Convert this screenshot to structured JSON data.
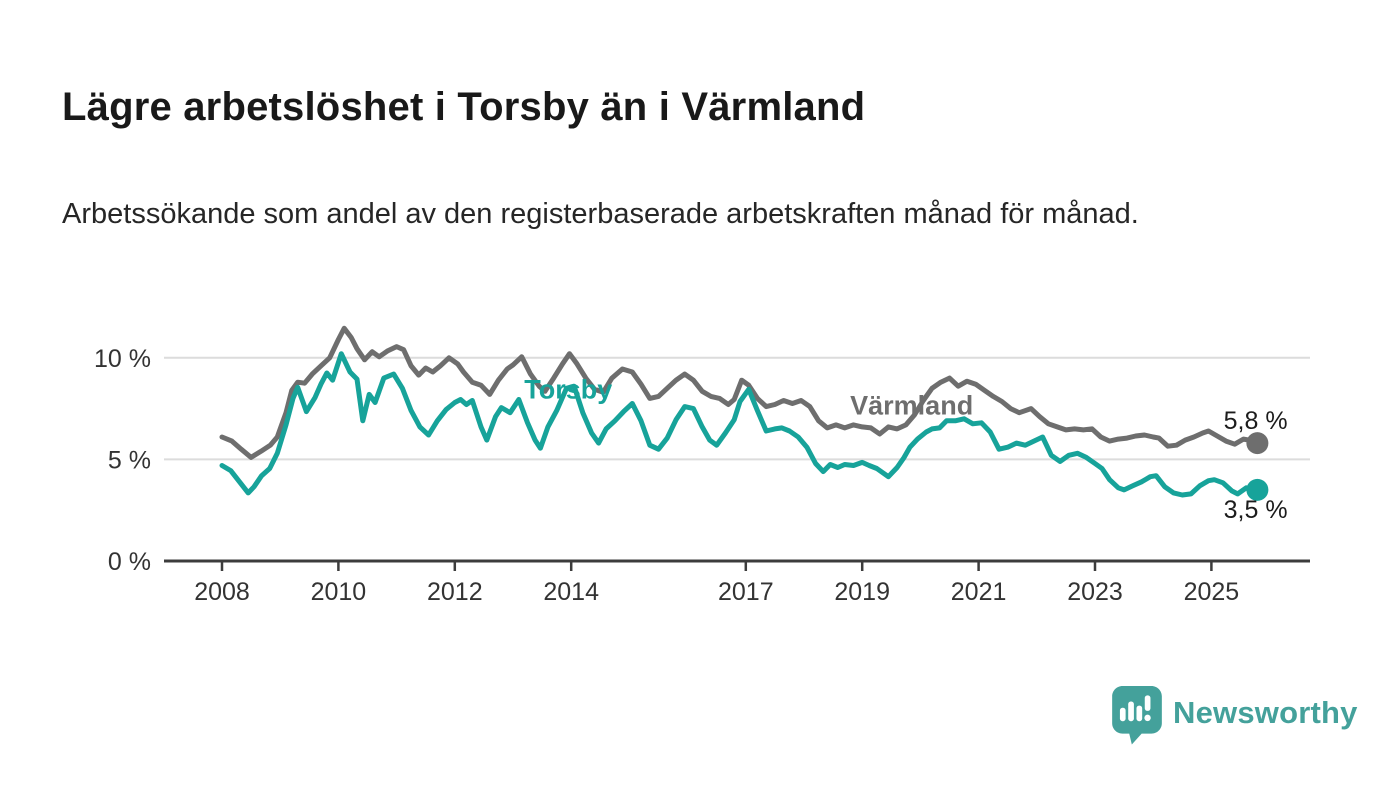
{
  "header": {
    "title": "Lägre arbetslöshet i Torsby än i Värmland",
    "subtitle": "Arbetssökande som andel av den registerbaserade arbetskraften månad för månad."
  },
  "footer": {
    "brand": "Newsworthy",
    "brand_color": "#44a19b",
    "icon": "newsworthy-speech-bubble-bar-chart-icon"
  },
  "colors": {
    "torsby_line": "#17a39a",
    "varmland_line": "#6e6e6e",
    "gridline": "#dcdcdc",
    "axis": "#3c3c3c",
    "tick_text": "#333333",
    "end_label_text": "#1c1c1c"
  },
  "chart_data": {
    "type": "line",
    "title": "Lägre arbetslöshet i Torsby än i Värmland",
    "subtitle": "Arbetssökande som andel av den registerbaserade arbetskraften månad för månad.",
    "unit": "%",
    "grid": "horizontal gridlines at 5 % and 10 %, x axis baseline at 0 %",
    "legend": "inline series labels on chart",
    "xlim_years": [
      2007.0,
      2026.7
    ],
    "ylim": [
      0,
      12.5
    ],
    "x_tick_labels": [
      "2008",
      "2010",
      "2012",
      "2014",
      "2017",
      "2019",
      "2021",
      "2023",
      "2025"
    ],
    "x_tick_years": [
      2008,
      2010,
      2012,
      2014,
      2017,
      2019,
      2021,
      2023,
      2025
    ],
    "y_ticks": [
      {
        "value": 0,
        "label": "0 %"
      },
      {
        "value": 5,
        "label": "5 %"
      },
      {
        "value": 10,
        "label": "10 %"
      }
    ],
    "series": [
      {
        "name": "Värmland",
        "color": "#6e6e6e",
        "end_label": "5,8 %",
        "end_value": 5.8,
        "label_anchor": {
          "year": 2019.85,
          "value": 7.65
        },
        "end_label_anchor": {
          "year": 2025.76,
          "value": 6.95
        },
        "points": [
          [
            2008.0,
            6.1
          ],
          [
            2008.17,
            5.9
          ],
          [
            2008.33,
            5.5
          ],
          [
            2008.5,
            5.1
          ],
          [
            2008.67,
            5.4
          ],
          [
            2008.83,
            5.7
          ],
          [
            2008.95,
            6.1
          ],
          [
            2009.1,
            7.3
          ],
          [
            2009.2,
            8.4
          ],
          [
            2009.3,
            8.8
          ],
          [
            2009.42,
            8.75
          ],
          [
            2009.55,
            9.2
          ],
          [
            2009.7,
            9.6
          ],
          [
            2009.85,
            10.0
          ],
          [
            2010.0,
            10.9
          ],
          [
            2010.1,
            11.45
          ],
          [
            2010.22,
            11.0
          ],
          [
            2010.32,
            10.45
          ],
          [
            2010.45,
            9.9
          ],
          [
            2010.58,
            10.3
          ],
          [
            2010.7,
            10.05
          ],
          [
            2010.85,
            10.35
          ],
          [
            2011.0,
            10.55
          ],
          [
            2011.12,
            10.4
          ],
          [
            2011.25,
            9.6
          ],
          [
            2011.38,
            9.15
          ],
          [
            2011.5,
            9.5
          ],
          [
            2011.62,
            9.3
          ],
          [
            2011.75,
            9.6
          ],
          [
            2011.9,
            10.0
          ],
          [
            2012.05,
            9.7
          ],
          [
            2012.15,
            9.3
          ],
          [
            2012.3,
            8.8
          ],
          [
            2012.45,
            8.65
          ],
          [
            2012.6,
            8.2
          ],
          [
            2012.75,
            8.9
          ],
          [
            2012.9,
            9.45
          ],
          [
            2013.0,
            9.65
          ],
          [
            2013.15,
            10.05
          ],
          [
            2013.3,
            9.2
          ],
          [
            2013.45,
            8.6
          ],
          [
            2013.55,
            8.35
          ],
          [
            2013.7,
            9.0
          ],
          [
            2013.85,
            9.7
          ],
          [
            2013.97,
            10.2
          ],
          [
            2014.1,
            9.7
          ],
          [
            2014.25,
            9.0
          ],
          [
            2014.4,
            8.45
          ],
          [
            2014.55,
            8.3
          ],
          [
            2014.7,
            9.0
          ],
          [
            2014.88,
            9.45
          ],
          [
            2015.05,
            9.3
          ],
          [
            2015.2,
            8.7
          ],
          [
            2015.35,
            8.0
          ],
          [
            2015.5,
            8.1
          ],
          [
            2015.65,
            8.5
          ],
          [
            2015.8,
            8.9
          ],
          [
            2015.95,
            9.2
          ],
          [
            2016.1,
            8.9
          ],
          [
            2016.25,
            8.35
          ],
          [
            2016.4,
            8.1
          ],
          [
            2016.55,
            8.0
          ],
          [
            2016.7,
            7.7
          ],
          [
            2016.8,
            7.95
          ],
          [
            2016.93,
            8.9
          ],
          [
            2017.05,
            8.65
          ],
          [
            2017.2,
            8.0
          ],
          [
            2017.35,
            7.6
          ],
          [
            2017.5,
            7.7
          ],
          [
            2017.65,
            7.9
          ],
          [
            2017.8,
            7.75
          ],
          [
            2017.95,
            7.9
          ],
          [
            2018.1,
            7.6
          ],
          [
            2018.25,
            6.9
          ],
          [
            2018.4,
            6.55
          ],
          [
            2018.55,
            6.7
          ],
          [
            2018.7,
            6.55
          ],
          [
            2018.85,
            6.7
          ],
          [
            2019.0,
            6.6
          ],
          [
            2019.15,
            6.55
          ],
          [
            2019.3,
            6.25
          ],
          [
            2019.45,
            6.6
          ],
          [
            2019.6,
            6.5
          ],
          [
            2019.75,
            6.7
          ],
          [
            2019.9,
            7.2
          ],
          [
            2020.05,
            7.9
          ],
          [
            2020.2,
            8.5
          ],
          [
            2020.35,
            8.8
          ],
          [
            2020.5,
            9.0
          ],
          [
            2020.65,
            8.6
          ],
          [
            2020.8,
            8.85
          ],
          [
            2020.95,
            8.7
          ],
          [
            2021.1,
            8.4
          ],
          [
            2021.25,
            8.1
          ],
          [
            2021.4,
            7.85
          ],
          [
            2021.55,
            7.5
          ],
          [
            2021.7,
            7.3
          ],
          [
            2021.9,
            7.5
          ],
          [
            2022.05,
            7.1
          ],
          [
            2022.2,
            6.75
          ],
          [
            2022.35,
            6.6
          ],
          [
            2022.5,
            6.45
          ],
          [
            2022.65,
            6.5
          ],
          [
            2022.8,
            6.45
          ],
          [
            2022.95,
            6.5
          ],
          [
            2023.1,
            6.1
          ],
          [
            2023.25,
            5.9
          ],
          [
            2023.4,
            6.0
          ],
          [
            2023.55,
            6.05
          ],
          [
            2023.7,
            6.15
          ],
          [
            2023.85,
            6.2
          ],
          [
            2024.0,
            6.1
          ],
          [
            2024.1,
            6.05
          ],
          [
            2024.25,
            5.65
          ],
          [
            2024.4,
            5.7
          ],
          [
            2024.55,
            5.95
          ],
          [
            2024.7,
            6.1
          ],
          [
            2024.85,
            6.3
          ],
          [
            2024.95,
            6.4
          ],
          [
            2025.1,
            6.15
          ],
          [
            2025.25,
            5.9
          ],
          [
            2025.4,
            5.75
          ],
          [
            2025.55,
            6.0
          ],
          [
            2025.65,
            5.95
          ],
          [
            2025.79,
            5.8
          ]
        ]
      },
      {
        "name": "Torsby",
        "color": "#17a39a",
        "end_label": "3,5 %",
        "end_value": 3.5,
        "label_anchor": {
          "year": 2013.95,
          "value": 8.45
        },
        "end_label_anchor": {
          "year": 2025.76,
          "value": 2.55
        },
        "points": [
          [
            2008.0,
            4.7
          ],
          [
            2008.15,
            4.45
          ],
          [
            2008.3,
            3.9
          ],
          [
            2008.45,
            3.35
          ],
          [
            2008.55,
            3.65
          ],
          [
            2008.68,
            4.2
          ],
          [
            2008.82,
            4.55
          ],
          [
            2008.95,
            5.3
          ],
          [
            2009.1,
            6.7
          ],
          [
            2009.22,
            8.0
          ],
          [
            2009.3,
            8.55
          ],
          [
            2009.45,
            7.35
          ],
          [
            2009.6,
            8.05
          ],
          [
            2009.7,
            8.7
          ],
          [
            2009.8,
            9.25
          ],
          [
            2009.9,
            8.9
          ],
          [
            2010.05,
            10.2
          ],
          [
            2010.2,
            9.3
          ],
          [
            2010.32,
            8.95
          ],
          [
            2010.42,
            6.9
          ],
          [
            2010.53,
            8.2
          ],
          [
            2010.63,
            7.8
          ],
          [
            2010.78,
            9.0
          ],
          [
            2010.95,
            9.2
          ],
          [
            2011.1,
            8.5
          ],
          [
            2011.25,
            7.4
          ],
          [
            2011.4,
            6.6
          ],
          [
            2011.55,
            6.2
          ],
          [
            2011.7,
            6.9
          ],
          [
            2011.85,
            7.45
          ],
          [
            2012.0,
            7.8
          ],
          [
            2012.1,
            7.95
          ],
          [
            2012.2,
            7.7
          ],
          [
            2012.3,
            7.9
          ],
          [
            2012.45,
            6.6
          ],
          [
            2012.55,
            5.95
          ],
          [
            2012.7,
            7.1
          ],
          [
            2012.8,
            7.55
          ],
          [
            2012.95,
            7.3
          ],
          [
            2013.1,
            7.95
          ],
          [
            2013.25,
            6.8
          ],
          [
            2013.38,
            5.95
          ],
          [
            2013.47,
            5.55
          ],
          [
            2013.6,
            6.6
          ],
          [
            2013.75,
            7.4
          ],
          [
            2013.92,
            8.5
          ],
          [
            2014.05,
            8.6
          ],
          [
            2014.2,
            7.3
          ],
          [
            2014.35,
            6.3
          ],
          [
            2014.47,
            5.8
          ],
          [
            2014.6,
            6.5
          ],
          [
            2014.75,
            6.9
          ],
          [
            2014.9,
            7.35
          ],
          [
            2015.05,
            7.75
          ],
          [
            2015.2,
            6.9
          ],
          [
            2015.35,
            5.7
          ],
          [
            2015.5,
            5.5
          ],
          [
            2015.65,
            6.05
          ],
          [
            2015.8,
            6.95
          ],
          [
            2015.95,
            7.6
          ],
          [
            2016.1,
            7.5
          ],
          [
            2016.25,
            6.6
          ],
          [
            2016.38,
            5.95
          ],
          [
            2016.5,
            5.7
          ],
          [
            2016.65,
            6.3
          ],
          [
            2016.8,
            6.95
          ],
          [
            2016.9,
            7.85
          ],
          [
            2017.05,
            8.45
          ],
          [
            2017.2,
            7.4
          ],
          [
            2017.35,
            6.4
          ],
          [
            2017.5,
            6.5
          ],
          [
            2017.62,
            6.55
          ],
          [
            2017.75,
            6.4
          ],
          [
            2017.9,
            6.1
          ],
          [
            2018.05,
            5.6
          ],
          [
            2018.2,
            4.8
          ],
          [
            2018.33,
            4.4
          ],
          [
            2018.45,
            4.75
          ],
          [
            2018.58,
            4.6
          ],
          [
            2018.7,
            4.75
          ],
          [
            2018.85,
            4.7
          ],
          [
            2019.0,
            4.85
          ],
          [
            2019.12,
            4.7
          ],
          [
            2019.25,
            4.55
          ],
          [
            2019.45,
            4.15
          ],
          [
            2019.6,
            4.6
          ],
          [
            2019.72,
            5.1
          ],
          [
            2019.82,
            5.6
          ],
          [
            2019.95,
            6.0
          ],
          [
            2020.1,
            6.35
          ],
          [
            2020.2,
            6.5
          ],
          [
            2020.33,
            6.55
          ],
          [
            2020.45,
            6.9
          ],
          [
            2020.6,
            6.9
          ],
          [
            2020.75,
            7.0
          ],
          [
            2020.9,
            6.75
          ],
          [
            2021.05,
            6.8
          ],
          [
            2021.2,
            6.35
          ],
          [
            2021.35,
            5.5
          ],
          [
            2021.5,
            5.6
          ],
          [
            2021.65,
            5.8
          ],
          [
            2021.8,
            5.7
          ],
          [
            2021.95,
            5.9
          ],
          [
            2022.1,
            6.1
          ],
          [
            2022.25,
            5.2
          ],
          [
            2022.4,
            4.9
          ],
          [
            2022.55,
            5.2
          ],
          [
            2022.7,
            5.3
          ],
          [
            2022.85,
            5.1
          ],
          [
            2023.0,
            4.8
          ],
          [
            2023.12,
            4.55
          ],
          [
            2023.25,
            4.0
          ],
          [
            2023.4,
            3.6
          ],
          [
            2023.5,
            3.5
          ],
          [
            2023.65,
            3.7
          ],
          [
            2023.8,
            3.9
          ],
          [
            2023.95,
            4.15
          ],
          [
            2024.05,
            4.2
          ],
          [
            2024.2,
            3.65
          ],
          [
            2024.35,
            3.35
          ],
          [
            2024.5,
            3.25
          ],
          [
            2024.65,
            3.3
          ],
          [
            2024.8,
            3.7
          ],
          [
            2024.95,
            3.95
          ],
          [
            2025.05,
            4.0
          ],
          [
            2025.2,
            3.85
          ],
          [
            2025.35,
            3.45
          ],
          [
            2025.45,
            3.3
          ],
          [
            2025.6,
            3.6
          ],
          [
            2025.79,
            3.5
          ]
        ]
      }
    ]
  }
}
